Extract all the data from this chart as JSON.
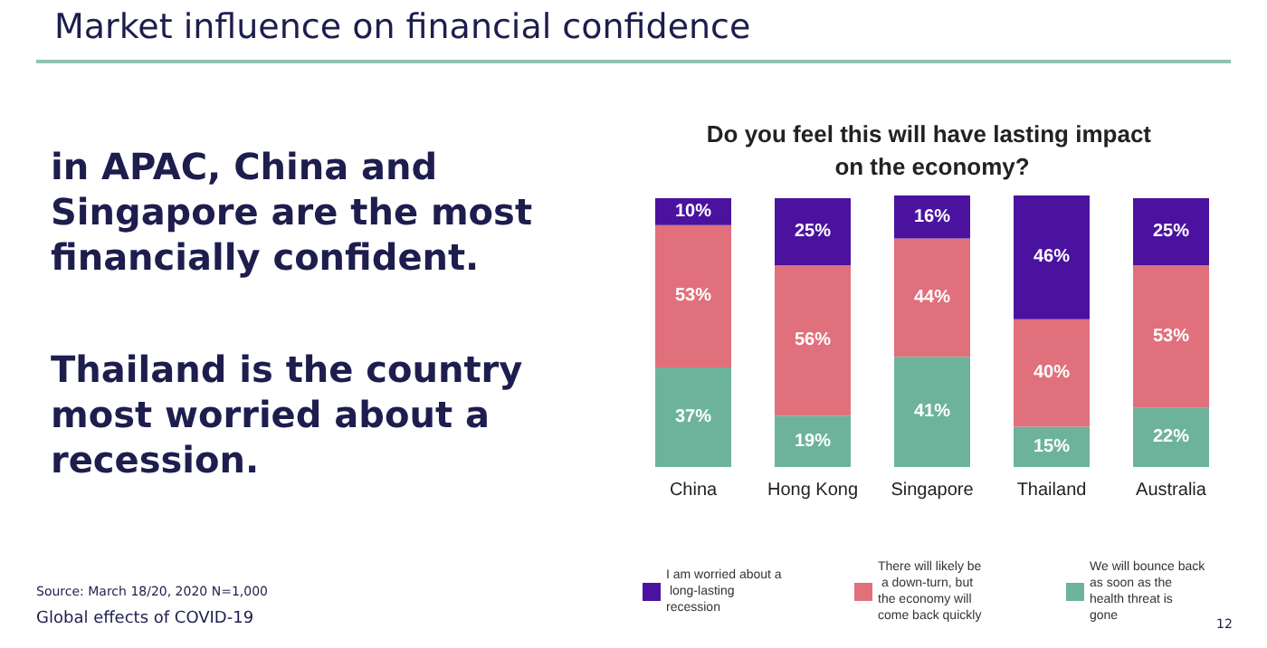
{
  "chart_data": {
    "type": "bar",
    "stacked": true,
    "title": "Market influence on financial confidence",
    "subtitle": "Do you feel this will have lasting impact on the economy?",
    "categories": [
      "China",
      "Hong Kong",
      "Singapore",
      "Thailand",
      "Australia"
    ],
    "series": [
      {
        "name": "We will bounce back as soon as the health threat is gone",
        "color": "#6db39b",
        "values": [
          37,
          19,
          41,
          15,
          22
        ],
        "value_labels": [
          "37%",
          "19%",
          "41%",
          "15%",
          "22%"
        ]
      },
      {
        "name": "There will likely be a down-turn, but the economy will come back quickly",
        "color": "#e0707c",
        "values": [
          53,
          56,
          44,
          40,
          53
        ],
        "value_labels": [
          "53%",
          "56%",
          "44%",
          "40%",
          "53%"
        ]
      },
      {
        "name": "I am worried about a long-lasting recession",
        "color": "#4b12a0",
        "values": [
          10,
          25,
          16,
          46,
          25
        ],
        "value_labels": [
          "10%",
          "25%",
          "16%",
          "46%",
          "25%"
        ]
      }
    ],
    "tick_labels": "x",
    "legend": "bottom",
    "annotations": [
      "in APAC, China and Singapore are the most financially confident.",
      "Thailand is the country most worried about a recession.",
      "Source: March 18/20, 2020 N=1,000",
      "Global effects of COVID-19",
      "12"
    ]
  }
}
